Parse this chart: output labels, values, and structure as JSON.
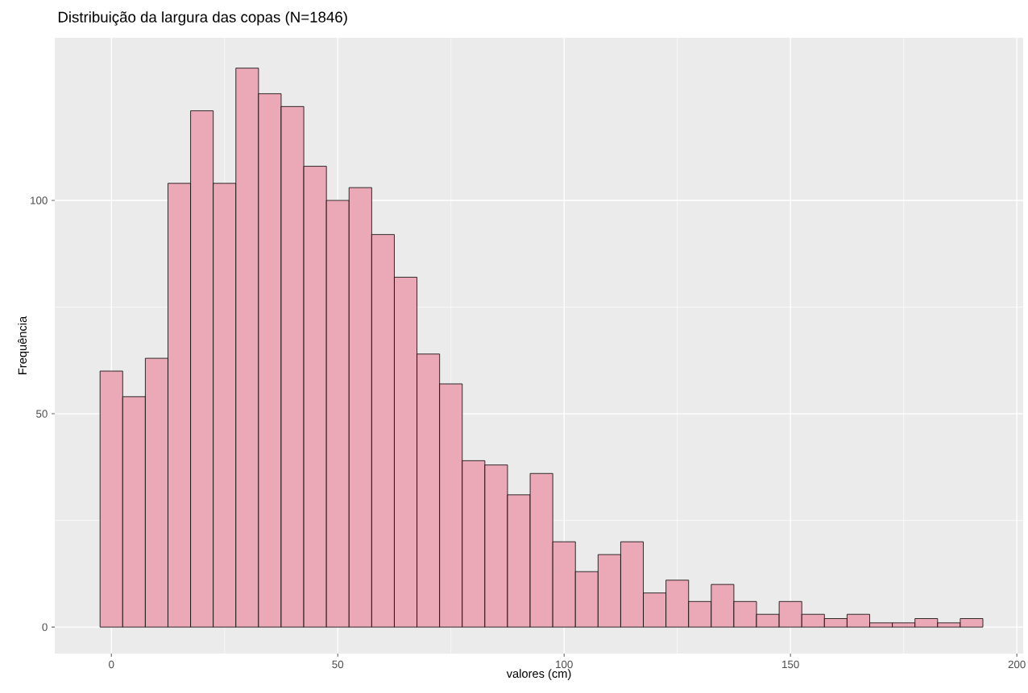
{
  "chart_data": {
    "type": "histogram",
    "title": "Distribuição da largura das copas (N=1846)",
    "xlabel": "valores (cm)",
    "ylabel": "Frequência",
    "bins": [
      -2.5,
      2.5,
      7.5,
      12.5,
      17.5,
      22.5,
      27.5,
      32.5,
      37.5,
      42.5,
      47.5,
      52.5,
      57.5,
      62.5,
      67.5,
      72.5,
      77.5,
      82.5,
      87.5,
      92.5,
      97.5,
      102.5,
      107.5,
      112.5,
      117.5,
      122.5,
      127.5,
      132.5,
      137.5,
      142.5,
      147.5,
      152.5,
      157.5,
      162.5,
      167.5,
      172.5,
      177.5,
      182.5,
      187.5,
      192.5
    ],
    "values": [
      60,
      54,
      63,
      104,
      121,
      104,
      131,
      125,
      122,
      108,
      100,
      103,
      92,
      82,
      64,
      57,
      39,
      38,
      31,
      36,
      20,
      13,
      17,
      20,
      8,
      11,
      6,
      10,
      6,
      3,
      6,
      3,
      2,
      3,
      1,
      1,
      2,
      1,
      2
    ],
    "color": "#eba8b6",
    "xlim": [
      -12.5,
      201.4
    ],
    "ylim": [
      -6.2,
      138.1
    ],
    "xticks": [
      0,
      50,
      100,
      150,
      200
    ],
    "yticks": [
      0,
      50,
      100
    ],
    "grid": true
  }
}
